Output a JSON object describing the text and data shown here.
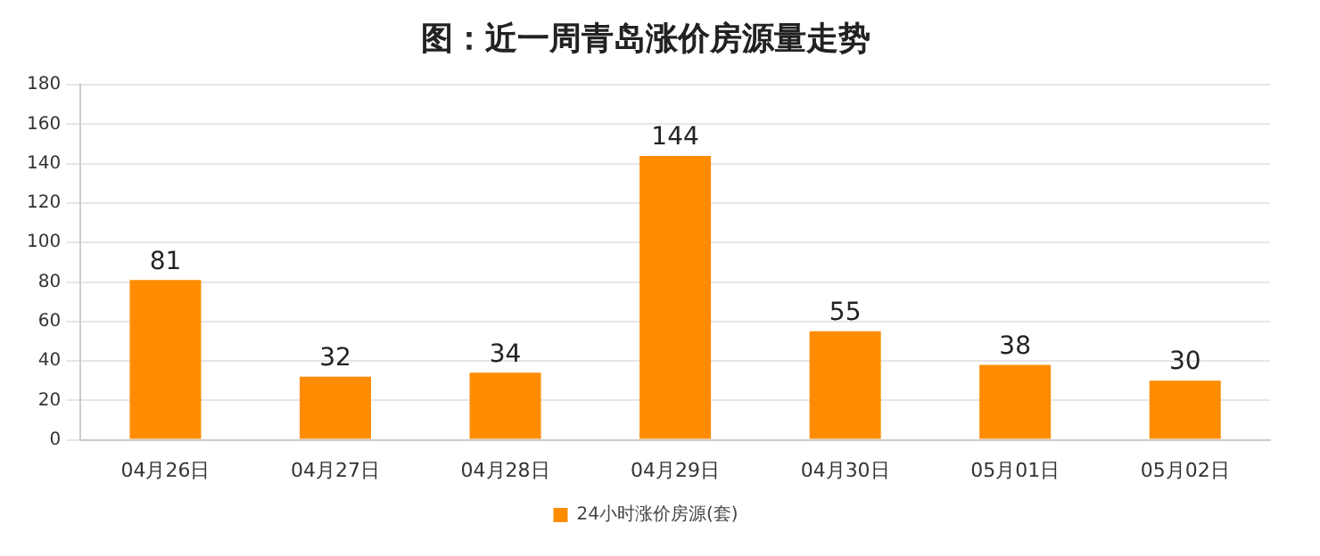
{
  "chart_data": {
    "type": "bar",
    "title": "图：近一周青岛涨价房源量走势",
    "categories": [
      "04月26日",
      "04月27日",
      "04月28日",
      "04月29日",
      "04月30日",
      "05月01日",
      "05月02日"
    ],
    "series": [
      {
        "name": "24小时涨价房源(套)",
        "color": "#ff8c00",
        "values": [
          81,
          32,
          34,
          144,
          55,
          38,
          30
        ]
      }
    ],
    "ylim": [
      0,
      180
    ],
    "yticks": [
      0,
      20,
      40,
      60,
      80,
      100,
      120,
      140,
      160,
      180
    ],
    "grid": "y",
    "legend": "bottom",
    "data_labels": true
  }
}
